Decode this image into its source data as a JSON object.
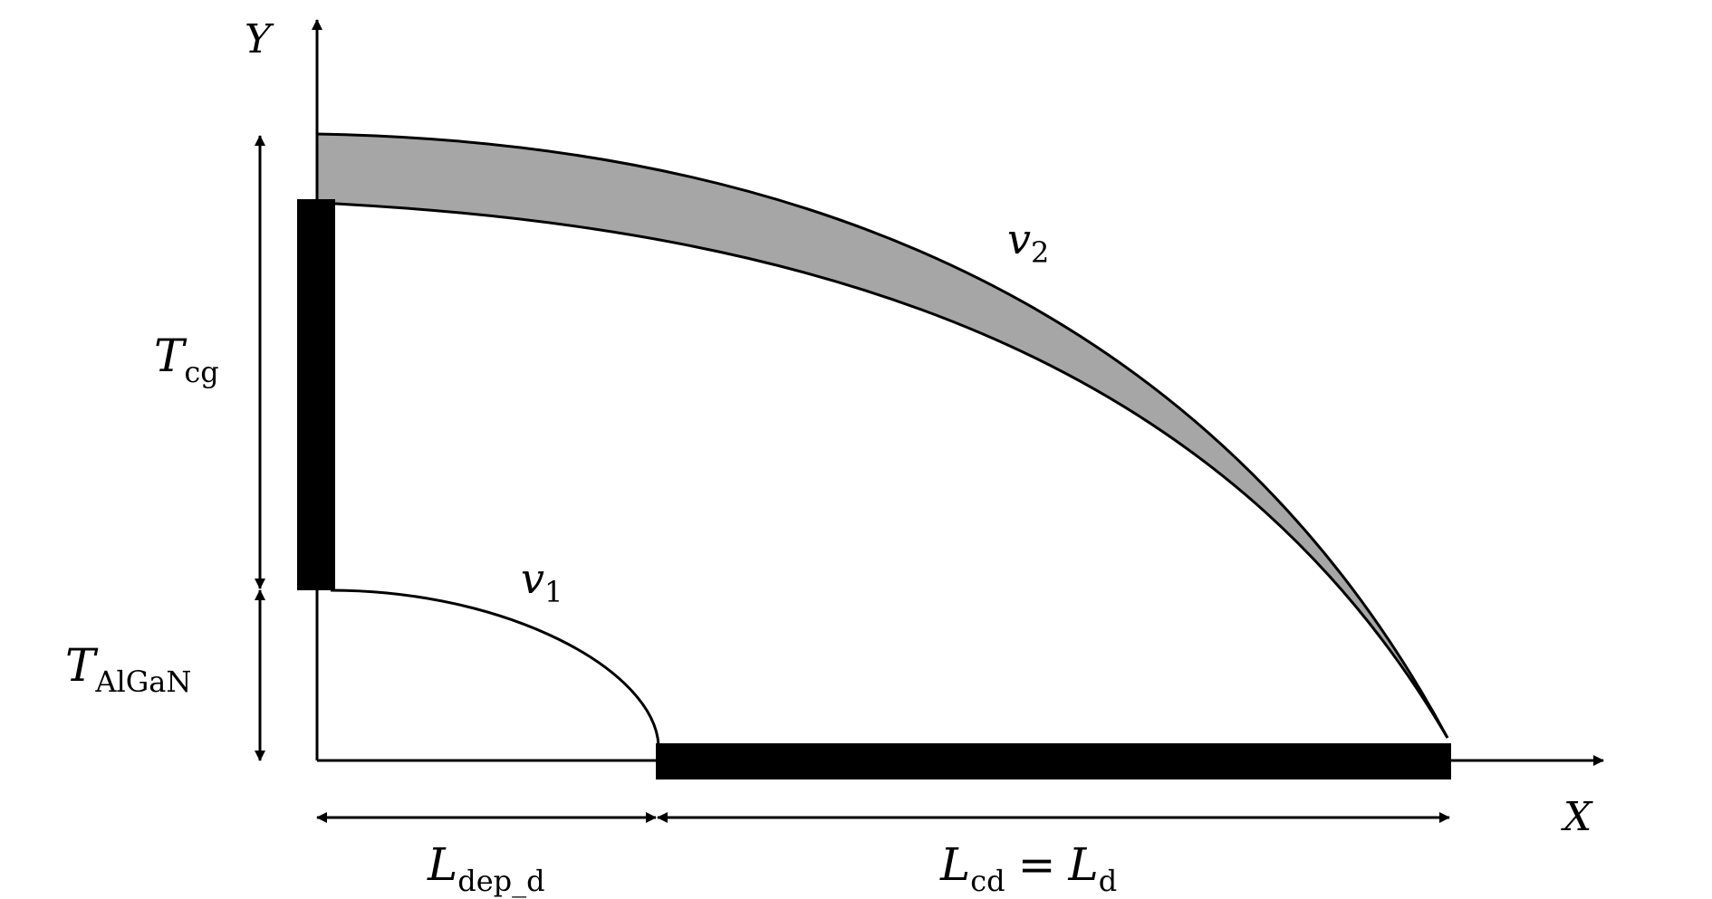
{
  "axes": {
    "x_label": "X",
    "y_label": "Y"
  },
  "curves": {
    "v1": {
      "symbol": "v",
      "subscript": "1"
    },
    "v2": {
      "symbol": "v",
      "subscript": "2"
    }
  },
  "dimensions": {
    "t_cg": {
      "symbol": "T",
      "subscript": "cg"
    },
    "t_algan": {
      "symbol": "T",
      "subscript": "AlGaN"
    },
    "l_dep_d": {
      "symbol": "L",
      "subscript": "dep_d"
    },
    "l_cd": {
      "symbol": "L",
      "subscript": "cd",
      "equals": "=",
      "rhs_symbol": "L",
      "rhs_subscript": "d"
    }
  },
  "colors": {
    "line": "#000000",
    "shaded_band": "#a6a6a6",
    "background": "#ffffff"
  }
}
